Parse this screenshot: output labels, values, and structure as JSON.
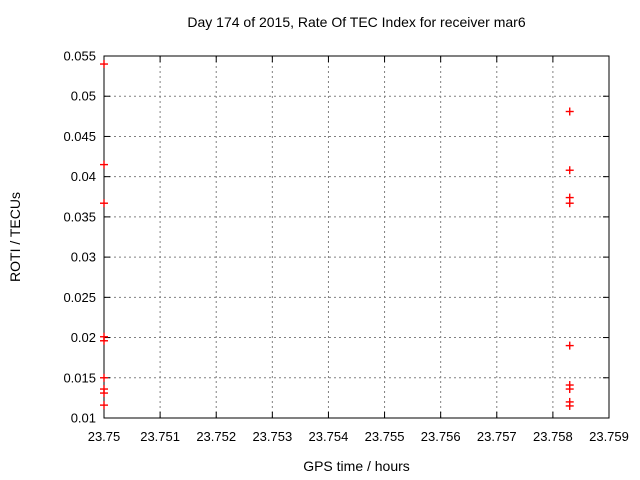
{
  "chart_data": {
    "type": "scatter",
    "title": "Day 174 of 2015, Rate Of TEC Index for receiver mar6",
    "xlabel": "GPS time / hours",
    "ylabel": "ROTI / TECUs",
    "xlim": [
      23.75,
      23.759
    ],
    "ylim": [
      0.01,
      0.055
    ],
    "x_ticks": [
      23.75,
      23.751,
      23.752,
      23.753,
      23.754,
      23.755,
      23.756,
      23.757,
      23.758,
      23.759
    ],
    "x_tick_labels": [
      "23.75",
      "23.751",
      "23.752",
      "23.753",
      "23.754",
      "23.755",
      "23.756",
      "23.757",
      "23.758",
      "23.759"
    ],
    "y_ticks": [
      0.01,
      0.015,
      0.02,
      0.025,
      0.03,
      0.035,
      0.04,
      0.045,
      0.05,
      0.055
    ],
    "y_tick_labels": [
      "0.01",
      "0.015",
      "0.02",
      "0.025",
      "0.03",
      "0.035",
      "0.04",
      "0.045",
      "0.05",
      "0.055"
    ],
    "grid": true,
    "legend": "none",
    "marker": {
      "shape": "plus",
      "color": "#ff0000",
      "size": 8
    },
    "grid_color": "#808080",
    "axis_color": "#000000",
    "background": "#ffffff",
    "series": [
      {
        "name": "ROTI",
        "points": [
          [
            23.75,
            0.054
          ],
          [
            23.75,
            0.0415
          ],
          [
            23.75,
            0.0367
          ],
          [
            23.75,
            0.0201
          ],
          [
            23.75,
            0.0196
          ],
          [
            23.75,
            0.015
          ],
          [
            23.75,
            0.0136
          ],
          [
            23.75,
            0.0131
          ],
          [
            23.75,
            0.0116
          ],
          [
            23.7583,
            0.0481
          ],
          [
            23.7583,
            0.0408
          ],
          [
            23.7583,
            0.0374
          ],
          [
            23.7583,
            0.0367
          ],
          [
            23.7583,
            0.019
          ],
          [
            23.7583,
            0.0141
          ],
          [
            23.7583,
            0.0136
          ],
          [
            23.7583,
            0.012
          ],
          [
            23.7583,
            0.0115
          ]
        ]
      }
    ]
  }
}
